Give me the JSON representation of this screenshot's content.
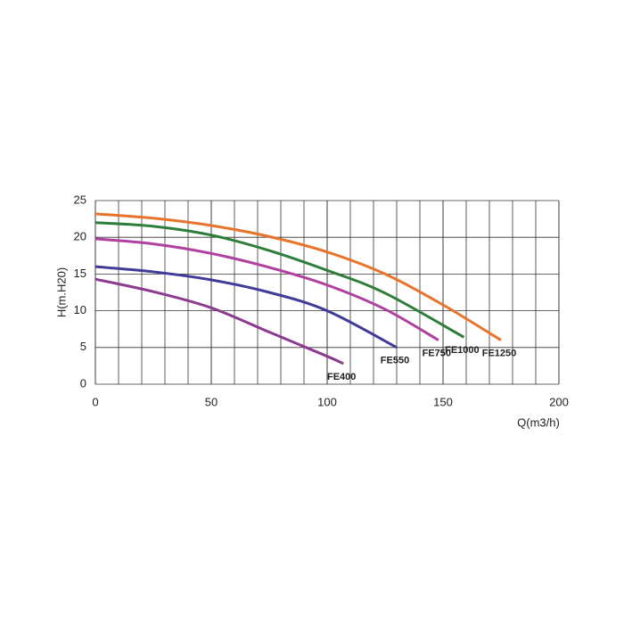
{
  "chart_data": {
    "type": "line",
    "x_label": "Q(m3/h)",
    "y_label": "H(m.H20)",
    "xlim": [
      0,
      200
    ],
    "xticks": [
      0,
      50,
      100,
      150,
      200
    ],
    "x_minor_step": 10,
    "ylim": [
      0,
      25
    ],
    "yticks": [
      0,
      5,
      10,
      15,
      20,
      25
    ],
    "grid": true,
    "series": [
      {
        "name": "FE400",
        "color": "#8b3a8f",
        "x": [
          0,
          25,
          50,
          75,
          100,
          107
        ],
        "values": [
          14.3,
          12.6,
          10.4,
          7.1,
          3.8,
          2.8
        ]
      },
      {
        "name": "FE550",
        "color": "#3e3b99",
        "x": [
          0,
          25,
          50,
          75,
          100,
          130
        ],
        "values": [
          16,
          15.3,
          14.2,
          12.5,
          10,
          5
        ]
      },
      {
        "name": "FE750",
        "color": "#b0409f",
        "x": [
          0,
          25,
          50,
          75,
          100,
          125,
          148
        ],
        "values": [
          19.8,
          19.1,
          17.8,
          15.9,
          13.5,
          10.2,
          6
        ]
      },
      {
        "name": "FE1000",
        "color": "#2f7d3b",
        "x": [
          0,
          25,
          50,
          75,
          100,
          125,
          159
        ],
        "values": [
          22,
          21.5,
          20.3,
          18.2,
          15.5,
          12.4,
          6.4
        ]
      },
      {
        "name": "FE1250",
        "color": "#e8732a",
        "x": [
          0,
          25,
          50,
          75,
          100,
          125,
          150,
          175
        ],
        "values": [
          23.2,
          22.6,
          21.6,
          20.1,
          18,
          15,
          10.8,
          6
        ]
      }
    ]
  }
}
